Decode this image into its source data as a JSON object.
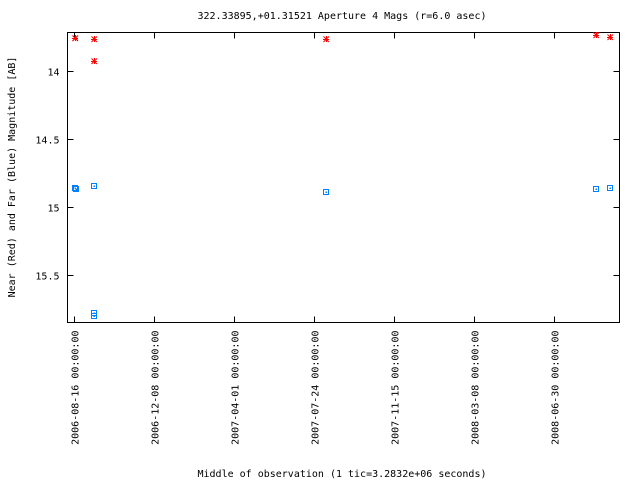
{
  "chart_data": {
    "type": "scatter",
    "title": "322.33895,+01.31521   Aperture 4 Mags (r=6.0 asec)",
    "xlabel": "Middle of observation (1 tic=3.2832e+06 seconds)",
    "ylabel": "Near (Red) and Far (Blue) Magnitude [AB]",
    "y_inverted": true,
    "ylim": [
      15.85,
      13.72
    ],
    "xlim": [
      "2006-08-07",
      "2008-10-02"
    ],
    "y_ticks": [
      {
        "value": 14,
        "label": "14"
      },
      {
        "value": 14.5,
        "label": "14.5"
      },
      {
        "value": 15,
        "label": "15"
      },
      {
        "value": 15.5,
        "label": "15.5"
      }
    ],
    "x_ticks": [
      {
        "value": "2006-08-16",
        "label": "2006-08-16 00:00:00"
      },
      {
        "value": "2006-12-08",
        "label": "2006-12-08 00:00:00"
      },
      {
        "value": "2007-04-01",
        "label": "2007-04-01 00:00:00"
      },
      {
        "value": "2007-07-24",
        "label": "2007-07-24 00:00:00"
      },
      {
        "value": "2007-11-15",
        "label": "2007-11-15 00:00:00"
      },
      {
        "value": "2008-03-08",
        "label": "2008-03-08 00:00:00"
      },
      {
        "value": "2008-06-30",
        "label": "2008-06-30 00:00:00"
      }
    ],
    "series": [
      {
        "color": "#ff0000",
        "marker": "star",
        "points": [
          {
            "x": "2006-08-17",
            "y": 13.76
          },
          {
            "x": "2006-08-18",
            "y": 13.76
          },
          {
            "x": "2006-09-14",
            "y": 13.77
          },
          {
            "x": "2006-09-14",
            "y": 13.93
          },
          {
            "x": "2007-08-10",
            "y": 13.77
          },
          {
            "x": "2008-08-30",
            "y": 13.74
          },
          {
            "x": "2008-09-18",
            "y": 13.75
          }
        ]
      },
      {
        "color": "#0080ff",
        "marker": "square",
        "points": [
          {
            "x": "2006-08-17",
            "y": 14.86
          },
          {
            "x": "2006-08-19",
            "y": 14.87
          },
          {
            "x": "2006-09-14",
            "y": 14.85
          },
          {
            "x": "2006-09-14",
            "y": 15.78
          },
          {
            "x": "2006-09-14",
            "y": 15.8
          },
          {
            "x": "2007-08-10",
            "y": 14.89
          },
          {
            "x": "2008-08-30",
            "y": 14.87
          },
          {
            "x": "2008-09-18",
            "y": 14.86
          }
        ]
      }
    ]
  }
}
